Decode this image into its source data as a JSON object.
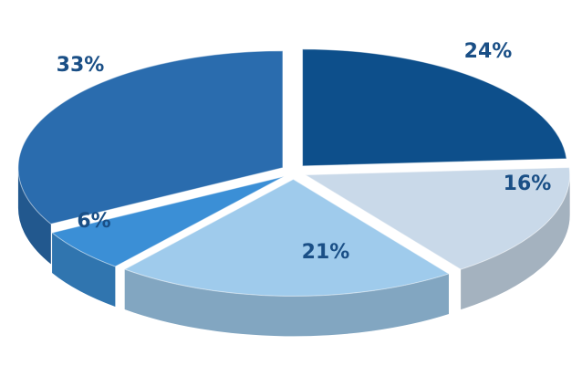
{
  "chart_data": {
    "type": "pie3d",
    "values": [
      24,
      16,
      21,
      6,
      33
    ],
    "value_labels": [
      "24%",
      "16%",
      "21%",
      "6%",
      "33%"
    ],
    "colors": [
      "#0d4f8b",
      "#c9d9e9",
      "#9fcbec",
      "#3b8fd6",
      "#2a6cae"
    ]
  }
}
